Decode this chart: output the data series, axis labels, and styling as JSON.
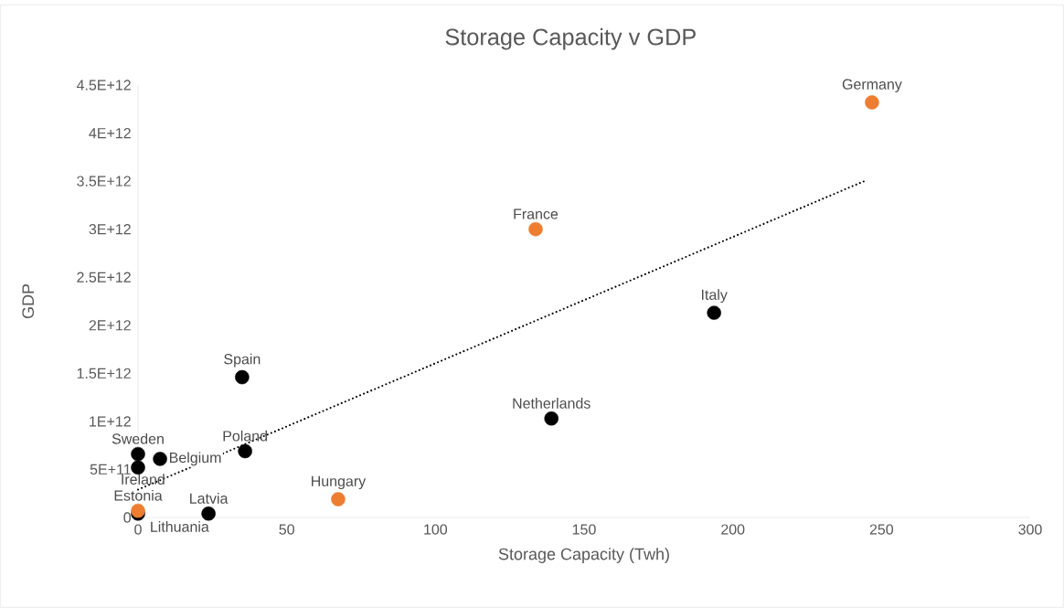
{
  "chart_data": {
    "type": "scatter",
    "title": "Storage Capacity v GDP",
    "xlabel": "Storage Capacity (Twh)",
    "ylabel": "GDP",
    "xlim": [
      0,
      300
    ],
    "xticks": [
      0,
      50,
      100,
      150,
      200,
      250,
      300
    ],
    "ylim": [
      0,
      4500000000000.0
    ],
    "yticks": [
      0,
      {
        "value": 500000000000.0,
        "label": "5E+11"
      },
      {
        "value": 1000000000000.0,
        "label": "1E+12"
      },
      {
        "value": 1500000000000.0,
        "label": "1.5E+12"
      },
      {
        "value": 2000000000000.0,
        "label": "2E+12"
      },
      {
        "value": 2500000000000.0,
        "label": "2.5E+12"
      },
      {
        "value": 3000000000000.0,
        "label": "3E+12"
      },
      {
        "value": 3500000000000.0,
        "label": "3.5E+12"
      },
      {
        "value": 4000000000000.0,
        "label": "4E+12"
      },
      {
        "value": 4500000000000.0,
        "label": "4.5E+12"
      }
    ],
    "marker": "circle",
    "series": [
      {
        "color": "#000000",
        "x": [
          193.7,
          139,
          35,
          36,
          7.4,
          0,
          0,
          0,
          23.7
        ],
        "values": [
          2130000000000.0,
          1030000000000.0,
          1460000000000.0,
          690000000000.0,
          610000000000.0,
          660000000000.0,
          520000000000.0,
          40000000000.0,
          40000000000.0
        ]
      },
      {
        "color": "#ed7d31",
        "x": [
          246.8,
          133.7,
          67.3,
          0
        ],
        "values": [
          4320000000000.0,
          3000000000000.0,
          190000000000.0,
          70000000000.0
        ]
      },
      {
        "type": "line",
        "color": "#000000",
        "line_style": "dotted",
        "marker": "none",
        "x": [
          0,
          245
        ],
        "values": [
          290000000000.0,
          3510000000000.0
        ]
      }
    ],
    "annotations": [
      {
        "text": "Germany",
        "x": 246.8,
        "y": 4320000000000.0
      },
      {
        "text": "France",
        "x": 133.7,
        "y": 3000000000000.0
      },
      {
        "text": "Italy",
        "x": 193.7,
        "y": 2130000000000.0
      },
      {
        "text": "Netherlands",
        "x": 139,
        "y": 1030000000000.0
      },
      {
        "text": "Spain",
        "x": 35,
        "y": 1460000000000.0
      },
      {
        "text": "Poland",
        "x": 36,
        "y": 690000000000.0
      },
      {
        "text": "Belgium",
        "x": 7.4,
        "y": 610000000000.0
      },
      {
        "text": "Sweden",
        "x": 0,
        "y": 660000000000.0
      },
      {
        "text": "Ireland",
        "x": 0,
        "y": 520000000000.0
      },
      {
        "text": "Hungary",
        "x": 67.3,
        "y": 190000000000.0
      },
      {
        "text": "Latvia",
        "x": 23.7,
        "y": 40000000000.0
      },
      {
        "text": "Estonia",
        "x": 0,
        "y": 70000000000.0
      },
      {
        "text": "Lithuania",
        "x": 0,
        "y": 40000000000.0
      }
    ]
  }
}
